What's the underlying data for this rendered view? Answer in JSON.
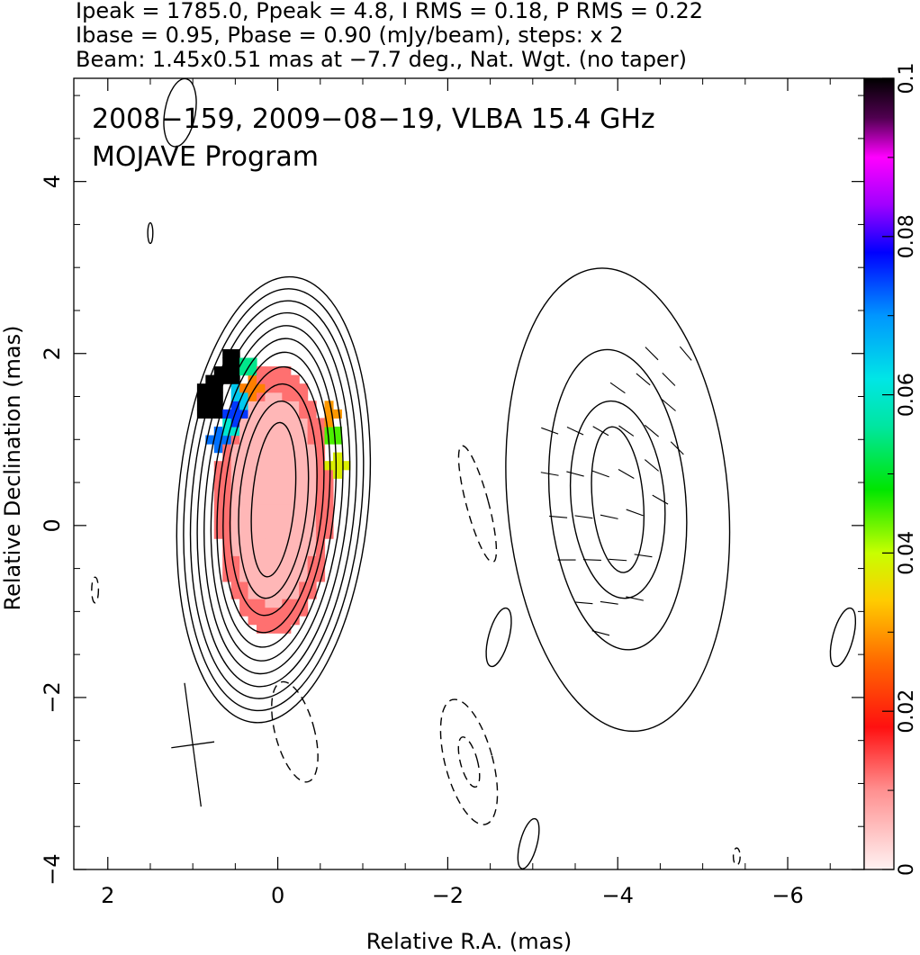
{
  "header": {
    "line1": "Ipeak = 1785.0, Ppeak = 4.8, I RMS = 0.18, P RMS = 0.22",
    "line2": "Ibase = 0.95, Pbase = 0.90 (mJy/beam), steps: x 2",
    "line3": "Beam: 1.45x0.51 mas at −7.7 deg., Nat. Wgt. (no taper)"
  },
  "chart_data": {
    "type": "heatmap",
    "title_line1": "2008−159, 2009−08−19, VLBA 15.4 GHz",
    "title_line2": "MOJAVE Program",
    "xlabel": "Relative R.A. (mas)",
    "ylabel": "Relative Declination (mas)",
    "xlim": [
      2.4,
      -6.9
    ],
    "ylim": [
      -4.0,
      5.2
    ],
    "x_ticks": [
      2,
      0,
      -2,
      -4,
      -6
    ],
    "x_tick_labels": [
      "2",
      "0",
      "−2",
      "−4",
      "−6"
    ],
    "y_ticks": [
      -4,
      -2,
      0,
      2,
      4
    ],
    "y_tick_labels": [
      "−4",
      "−2",
      "0",
      "2",
      "4"
    ],
    "colorbar": {
      "min": 0,
      "max": 0.1,
      "ticks": [
        0,
        0.02,
        0.04,
        0.06,
        0.08,
        0.1
      ],
      "tick_labels": [
        "0",
        "0.02",
        "0.04",
        "0.06",
        "0.08",
        "0.1"
      ]
    },
    "beam": {
      "major_mas": 1.45,
      "minor_mas": 0.51,
      "pa_deg": -7.7
    },
    "ipeak_mJy_per_beam": 1785.0,
    "ppeak_mJy_per_beam": 4.8,
    "contour_base_mJy_per_beam": 0.95,
    "contour_step_factor": 2,
    "core_contours": {
      "center": [
        0.05,
        0.3
      ],
      "levels": [
        {
          "a": 0.25,
          "b": 0.9
        },
        {
          "a": 0.4,
          "b": 1.15
        },
        {
          "a": 0.5,
          "b": 1.35
        },
        {
          "a": 0.58,
          "b": 1.55
        },
        {
          "a": 0.65,
          "b": 1.72
        },
        {
          "a": 0.72,
          "b": 1.88
        },
        {
          "a": 0.8,
          "b": 2.03
        },
        {
          "a": 0.88,
          "b": 2.18
        },
        {
          "a": 0.96,
          "b": 2.32
        },
        {
          "a": 1.04,
          "b": 2.46
        },
        {
          "a": 1.12,
          "b": 2.6
        }
      ]
    },
    "jet_component": {
      "center": [
        -4.0,
        0.3
      ],
      "levels": [
        {
          "a": 0.3,
          "b": 0.85
        },
        {
          "a": 0.55,
          "b": 1.15
        },
        {
          "a": 0.8,
          "b": 1.75
        },
        {
          "a": 1.3,
          "b": 2.7
        }
      ]
    },
    "negative_contours": [
      {
        "x": -2.35,
        "y": 0.25,
        "a": 0.13,
        "b": 0.7,
        "rot": -15
      },
      {
        "x": -0.2,
        "y": -2.4,
        "a": 0.23,
        "b": 0.6,
        "rot": -15
      },
      {
        "x": -2.25,
        "y": -2.75,
        "a": 0.28,
        "b": 0.75,
        "rot": -15
      },
      {
        "x": -2.25,
        "y": -2.75,
        "a": 0.1,
        "b": 0.3,
        "rot": -15
      },
      {
        "x": 2.15,
        "y": -0.75,
        "a": 0.04,
        "b": 0.15,
        "rot": 0
      },
      {
        "x": -5.4,
        "y": -3.85,
        "a": 0.04,
        "b": 0.1,
        "rot": 0
      }
    ],
    "positive_islands": [
      {
        "x": 1.15,
        "y": 4.8,
        "a": 0.18,
        "b": 0.4,
        "rot": 10
      },
      {
        "x": 1.5,
        "y": 3.4,
        "a": 0.03,
        "b": 0.12,
        "rot": 0
      },
      {
        "x": -2.6,
        "y": -1.3,
        "a": 0.12,
        "b": 0.35,
        "rot": 15
      },
      {
        "x": -2.95,
        "y": -3.7,
        "a": 0.1,
        "b": 0.3,
        "rot": 15
      },
      {
        "x": -6.65,
        "y": -1.3,
        "a": 0.12,
        "b": 0.35,
        "rot": 15
      }
    ],
    "fractional_polarization_map": {
      "core_high_level": 0.006,
      "core_outer_level": 0.012,
      "edge_samples": [
        {
          "x": -0.7,
          "y": 0.7,
          "v": 0.038
        },
        {
          "x": -0.68,
          "y": 1.05,
          "v": 0.045
        },
        {
          "x": -0.62,
          "y": 1.3,
          "v": 0.03
        },
        {
          "x": 0.3,
          "y": 1.6,
          "v": 0.028
        },
        {
          "x": 0.35,
          "y": 1.82,
          "v": 0.055
        },
        {
          "x": 0.45,
          "y": 1.5,
          "v": 0.065
        },
        {
          "x": 0.5,
          "y": 1.3,
          "v": 0.075
        },
        {
          "x": 0.62,
          "y": 1.1,
          "v": 0.06
        },
        {
          "x": 0.7,
          "y": 1.0,
          "v": 0.072
        },
        {
          "x": 0.55,
          "y": 1.95,
          "v": 0.1
        },
        {
          "x": 0.6,
          "y": 1.75,
          "v": 0.1
        },
        {
          "x": 0.7,
          "y": 1.7,
          "v": 0.1
        },
        {
          "x": 0.75,
          "y": 1.45,
          "v": 0.1
        },
        {
          "x": 0.8,
          "y": 1.35,
          "v": 0.1
        },
        {
          "x": 0.85,
          "y": 1.55,
          "v": 0.1
        }
      ]
    },
    "evpa_ticks": [
      {
        "x": -3.2,
        "y": 1.1,
        "angle": 160
      },
      {
        "x": -3.5,
        "y": 1.1,
        "angle": 155
      },
      {
        "x": -3.8,
        "y": 1.1,
        "angle": 150
      },
      {
        "x": -4.1,
        "y": 1.1,
        "angle": 145
      },
      {
        "x": -4.4,
        "y": 1.1,
        "angle": 140
      },
      {
        "x": -4.6,
        "y": 1.4,
        "angle": 140
      },
      {
        "x": -4.6,
        "y": 1.7,
        "angle": 135
      },
      {
        "x": -4.3,
        "y": 1.7,
        "angle": 140
      },
      {
        "x": -4.0,
        "y": 1.6,
        "angle": 145
      },
      {
        "x": -4.4,
        "y": 2.0,
        "angle": 135
      },
      {
        "x": -4.8,
        "y": 2.0,
        "angle": 130
      },
      {
        "x": -3.2,
        "y": 0.6,
        "angle": 170
      },
      {
        "x": -3.5,
        "y": 0.6,
        "angle": 165
      },
      {
        "x": -3.8,
        "y": 0.6,
        "angle": 160
      },
      {
        "x": -4.1,
        "y": 0.6,
        "angle": 150
      },
      {
        "x": -4.4,
        "y": 0.7,
        "angle": 140
      },
      {
        "x": -4.7,
        "y": 0.9,
        "angle": 135
      },
      {
        "x": -3.3,
        "y": 0.1,
        "angle": 175
      },
      {
        "x": -3.6,
        "y": 0.1,
        "angle": 172
      },
      {
        "x": -3.9,
        "y": 0.1,
        "angle": 168
      },
      {
        "x": -4.2,
        "y": 0.15,
        "angle": 160
      },
      {
        "x": -4.5,
        "y": 0.3,
        "angle": 150
      },
      {
        "x": -3.4,
        "y": -0.4,
        "angle": 180
      },
      {
        "x": -3.7,
        "y": -0.4,
        "angle": 178
      },
      {
        "x": -4.0,
        "y": -0.4,
        "angle": 176
      },
      {
        "x": -4.3,
        "y": -0.35,
        "angle": 172
      },
      {
        "x": -3.6,
        "y": -0.9,
        "angle": 175
      },
      {
        "x": -3.9,
        "y": -0.9,
        "angle": 172
      },
      {
        "x": -4.2,
        "y": -0.85,
        "angle": 168
      },
      {
        "x": -3.8,
        "y": -1.25,
        "angle": 165
      }
    ]
  }
}
